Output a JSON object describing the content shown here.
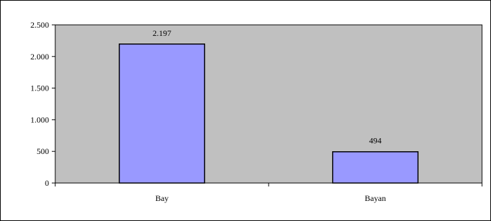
{
  "chart_data": {
    "type": "bar",
    "categories": [
      "Bay",
      "Bayan"
    ],
    "values": [
      2197,
      494
    ],
    "value_labels": [
      "2.197",
      "494"
    ],
    "y_ticks": [
      0,
      500,
      1000,
      1500,
      2000,
      2500
    ],
    "y_tick_labels": [
      "0",
      "500",
      "1.000",
      "1.500",
      "2.000",
      "2.500"
    ],
    "ylim": [
      0,
      2500
    ],
    "title": "",
    "xlabel": "",
    "ylabel": "",
    "grid": false,
    "legend": "none",
    "colors": {
      "plot_background": "#c0c0c0",
      "bar_fill": "#9999ff",
      "bar_stroke": "#000000",
      "axis": "#000000",
      "outer_border": "#000000"
    }
  }
}
